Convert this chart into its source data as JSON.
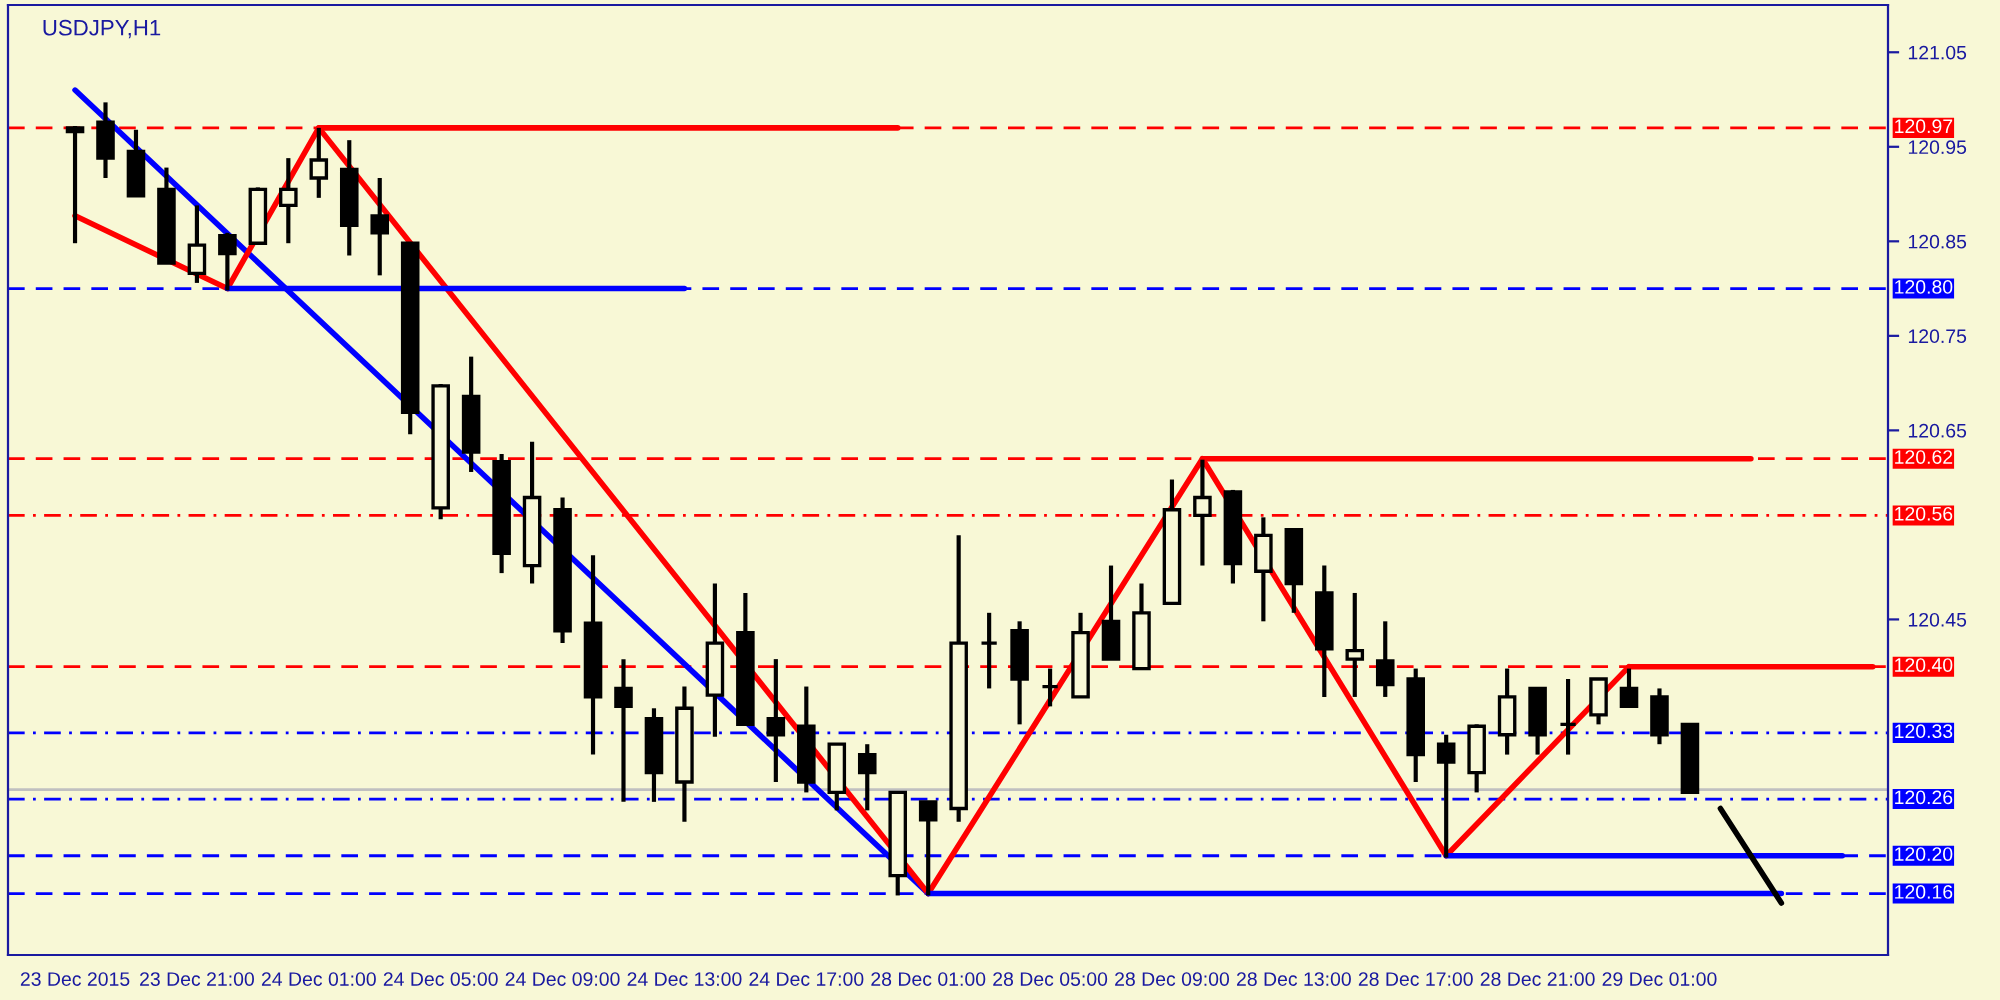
{
  "chart_data": {
    "type": "candlestick",
    "title": "USDJPY,H1",
    "categories": [
      "23 Dec 2015",
      null,
      null,
      null,
      "23 Dec 21:00",
      null,
      null,
      null,
      "24 Dec 01:00",
      null,
      null,
      null,
      "24 Dec 05:00",
      null,
      null,
      null,
      "24 Dec 09:00",
      null,
      null,
      null,
      "24 Dec 13:00",
      null,
      null,
      null,
      "24 Dec 17:00",
      null,
      null,
      null,
      "28 Dec 01:00",
      null,
      null,
      null,
      "28 Dec 05:00",
      null,
      null,
      null,
      "28 Dec 09:00",
      null,
      null,
      null,
      "28 Dec 13:00",
      null,
      null,
      null,
      "28 Dec 17:00",
      null,
      null,
      null,
      "28 Dec 21:00",
      null,
      null,
      null,
      "29 Dec 01:00",
      null,
      null,
      null,
      null,
      null,
      null,
      null
    ],
    "ohlc": [
      [
        120.97,
        120.972,
        120.848,
        120.966
      ],
      [
        120.976,
        120.997,
        120.917,
        120.938
      ],
      [
        120.945,
        120.968,
        120.898,
        120.898
      ],
      [
        120.905,
        120.928,
        120.827,
        120.827
      ],
      [
        120.816,
        120.888,
        120.806,
        120.846
      ],
      [
        120.856,
        120.859,
        120.798,
        120.837
      ],
      [
        120.848,
        120.907,
        120.848,
        120.905
      ],
      [
        120.888,
        120.938,
        120.848,
        120.905
      ],
      [
        120.917,
        120.97,
        120.896,
        120.936
      ],
      [
        120.926,
        120.957,
        120.835,
        120.867
      ],
      [
        120.877,
        120.917,
        120.814,
        120.859
      ],
      [
        120.848,
        120.848,
        120.646,
        120.669
      ],
      [
        120.568,
        120.699,
        120.556,
        120.697
      ],
      [
        120.686,
        120.728,
        120.606,
        120.627
      ],
      [
        120.617,
        120.625,
        120.499,
        120.52
      ],
      [
        120.507,
        120.638,
        120.488,
        120.579
      ],
      [
        120.566,
        120.579,
        120.425,
        120.438
      ],
      [
        120.446,
        120.518,
        120.307,
        120.368
      ],
      [
        120.377,
        120.408,
        120.257,
        120.358
      ],
      [
        120.345,
        120.356,
        120.257,
        120.288
      ],
      [
        120.278,
        120.379,
        120.236,
        120.356
      ],
      [
        120.37,
        120.488,
        120.326,
        120.425
      ],
      [
        120.436,
        120.478,
        120.339,
        120.339
      ],
      [
        120.345,
        120.408,
        120.278,
        120.328
      ],
      [
        120.337,
        120.379,
        120.267,
        120.278
      ],
      [
        120.267,
        120.318,
        120.248,
        120.318
      ],
      [
        120.307,
        120.318,
        120.248,
        120.288
      ],
      [
        120.179,
        120.267,
        120.158,
        120.267
      ],
      [
        120.257,
        120.257,
        120.158,
        120.238
      ],
      [
        120.25,
        120.539,
        120.236,
        120.425
      ],
      [
        120.425,
        120.457,
        120.377,
        120.425
      ],
      [
        120.438,
        120.448,
        120.339,
        120.387
      ],
      [
        120.379,
        120.398,
        120.358,
        120.379
      ],
      [
        120.368,
        120.457,
        120.368,
        120.436
      ],
      [
        120.448,
        120.507,
        120.408,
        120.408
      ],
      [
        120.398,
        120.488,
        120.398,
        120.457
      ],
      [
        120.467,
        120.598,
        120.467,
        120.566
      ],
      [
        120.56,
        120.619,
        120.507,
        120.579
      ],
      [
        120.585,
        120.587,
        120.488,
        120.509
      ],
      [
        120.501,
        120.558,
        120.448,
        120.539
      ],
      [
        120.545,
        120.545,
        120.457,
        120.488
      ],
      [
        120.478,
        120.507,
        120.368,
        120.419
      ],
      [
        120.408,
        120.478,
        120.368,
        120.417
      ],
      [
        120.406,
        120.448,
        120.368,
        120.381
      ],
      [
        120.387,
        120.398,
        120.278,
        120.307
      ],
      [
        120.318,
        120.328,
        120.198,
        120.299
      ],
      [
        120.288,
        120.339,
        120.267,
        120.337
      ],
      [
        120.328,
        120.398,
        120.307,
        120.368
      ],
      [
        120.377,
        120.377,
        120.307,
        120.328
      ],
      [
        120.339,
        120.387,
        120.307,
        120.339
      ],
      [
        120.349,
        120.387,
        120.339,
        120.387
      ],
      [
        120.377,
        120.398,
        120.358,
        120.358
      ],
      [
        120.368,
        120.377,
        120.318,
        120.328
      ],
      [
        120.339,
        120.339,
        120.267,
        120.267
      ],
      null,
      null,
      null,
      null,
      null,
      null
    ],
    "color": "#000000",
    "series": [
      {
        "type": "line",
        "color": "#0000ff",
        "values": [
          121.01,
          null,
          null,
          null,
          null,
          null,
          null,
          null,
          null,
          null,
          null,
          null,
          null,
          null,
          null,
          null,
          null,
          null,
          null,
          null,
          null,
          null,
          null,
          null,
          null,
          null,
          null,
          null,
          120.16,
          null,
          null,
          null,
          null,
          null,
          null,
          null,
          null,
          null,
          null,
          null,
          null,
          null,
          null,
          null,
          null,
          null,
          null,
          null,
          null,
          null,
          null,
          null,
          null,
          null,
          null,
          null,
          null,
          null,
          null,
          null
        ]
      },
      {
        "type": "line",
        "color": "#ff0000",
        "values": [
          120.877,
          null,
          null,
          null,
          null,
          120.8,
          null,
          null,
          120.97,
          null,
          null,
          null,
          null,
          null,
          null,
          null,
          null,
          null,
          null,
          null,
          null,
          null,
          null,
          null,
          null,
          null,
          null,
          null,
          120.16,
          null,
          null,
          null,
          null,
          null,
          null,
          null,
          null,
          120.62,
          null,
          null,
          null,
          null,
          null,
          null,
          null,
          120.2,
          null,
          null,
          null,
          null,
          null,
          120.4,
          null,
          null,
          null,
          null,
          null,
          null,
          null,
          null
        ]
      },
      {
        "type": "line",
        "color": "#ff0000",
        "values": [
          null,
          null,
          null,
          null,
          null,
          null,
          null,
          null,
          120.97,
          null,
          null,
          null,
          null,
          null,
          null,
          null,
          null,
          null,
          null,
          null,
          null,
          null,
          null,
          null,
          null,
          null,
          null,
          120.97,
          null,
          null,
          null,
          null,
          null,
          null,
          null,
          null,
          null,
          null,
          null,
          null,
          null,
          null,
          null,
          null,
          null,
          null,
          null,
          null,
          null,
          null,
          null,
          null,
          null,
          null,
          null,
          null,
          null,
          null,
          null,
          null
        ]
      },
      {
        "type": "line",
        "color": "#0000ff",
        "values": [
          null,
          null,
          null,
          null,
          null,
          120.8,
          null,
          null,
          null,
          null,
          null,
          null,
          null,
          null,
          null,
          null,
          null,
          null,
          null,
          null,
          120.8,
          null,
          null,
          null,
          null,
          null,
          null,
          null,
          null,
          null,
          null,
          null,
          null,
          null,
          null,
          null,
          null,
          null,
          null,
          null,
          null,
          null,
          null,
          null,
          null,
          null,
          null,
          null,
          null,
          null,
          null,
          null,
          null,
          null,
          null,
          null,
          null,
          null,
          null,
          null
        ]
      },
      {
        "type": "line",
        "color": "#ff0000",
        "values": [
          null,
          null,
          null,
          null,
          null,
          null,
          null,
          null,
          null,
          null,
          null,
          null,
          null,
          null,
          null,
          null,
          null,
          null,
          null,
          null,
          null,
          null,
          null,
          null,
          null,
          null,
          null,
          null,
          null,
          null,
          null,
          null,
          null,
          null,
          null,
          null,
          null,
          120.62,
          null,
          null,
          null,
          null,
          null,
          null,
          null,
          null,
          null,
          null,
          null,
          null,
          null,
          null,
          null,
          null,
          null,
          120.62,
          null,
          null,
          null,
          null
        ]
      },
      {
        "type": "line",
        "color": "#ff0000",
        "values": [
          null,
          null,
          null,
          null,
          null,
          null,
          null,
          null,
          null,
          null,
          null,
          null,
          null,
          null,
          null,
          null,
          null,
          null,
          null,
          null,
          null,
          null,
          null,
          null,
          null,
          null,
          null,
          null,
          null,
          null,
          null,
          null,
          null,
          null,
          null,
          null,
          null,
          null,
          null,
          null,
          null,
          null,
          null,
          null,
          null,
          null,
          null,
          null,
          null,
          null,
          null,
          120.4,
          null,
          null,
          null,
          null,
          null,
          null,
          null,
          120.4
        ]
      },
      {
        "type": "line",
        "color": "#0000ff",
        "values": [
          null,
          null,
          null,
          null,
          null,
          null,
          null,
          null,
          null,
          null,
          null,
          null,
          null,
          null,
          null,
          null,
          null,
          null,
          null,
          null,
          null,
          null,
          null,
          null,
          null,
          null,
          null,
          null,
          null,
          null,
          null,
          null,
          null,
          null,
          null,
          null,
          null,
          null,
          null,
          null,
          null,
          null,
          null,
          null,
          null,
          120.2,
          null,
          null,
          null,
          null,
          null,
          null,
          null,
          null,
          null,
          null,
          null,
          null,
          120.2,
          null
        ]
      },
      {
        "type": "line",
        "color": "#0000ff",
        "values": [
          null,
          null,
          null,
          null,
          null,
          null,
          null,
          null,
          null,
          null,
          null,
          null,
          null,
          null,
          null,
          null,
          null,
          null,
          null,
          null,
          null,
          null,
          null,
          null,
          null,
          null,
          null,
          null,
          120.16,
          null,
          null,
          null,
          null,
          null,
          null,
          null,
          null,
          null,
          null,
          null,
          null,
          null,
          null,
          null,
          null,
          null,
          null,
          null,
          null,
          null,
          null,
          null,
          null,
          null,
          null,
          null,
          120.16,
          null,
          null,
          null
        ]
      },
      {
        "type": "line",
        "color": "#000000",
        "values": [
          null,
          null,
          null,
          null,
          null,
          null,
          null,
          null,
          null,
          null,
          null,
          null,
          null,
          null,
          null,
          null,
          null,
          null,
          null,
          null,
          null,
          null,
          null,
          null,
          null,
          null,
          null,
          null,
          null,
          null,
          null,
          null,
          null,
          null,
          null,
          null,
          null,
          null,
          null,
          null,
          null,
          null,
          null,
          null,
          null,
          null,
          null,
          null,
          null,
          null,
          null,
          null,
          null,
          null,
          120.25,
          null,
          120.15,
          null,
          null,
          null
        ]
      }
    ],
    "ref_lines": [
      {
        "axis": "y",
        "value": 120.97,
        "label": "120.97",
        "color": "#ff0000",
        "line_style": "dashed"
      },
      {
        "axis": "y",
        "value": 120.8,
        "label": "120.80",
        "color": "#0000ff",
        "line_style": "dashed"
      },
      {
        "axis": "y",
        "value": 120.62,
        "label": "120.62",
        "color": "#ff0000",
        "line_style": "dashed"
      },
      {
        "axis": "y",
        "value": 120.56,
        "label": "120.56",
        "color": "#ff0000",
        "line_style": "dotted"
      },
      {
        "axis": "y",
        "value": 120.4,
        "label": "120.40",
        "color": "#ff0000",
        "line_style": "dashed"
      },
      {
        "axis": "y",
        "value": 120.33,
        "label": "120.33",
        "color": "#0000ff",
        "line_style": "dotted"
      },
      {
        "axis": "y",
        "value": 120.27,
        "color": "#c0c0c0",
        "line_style": "solid"
      },
      {
        "axis": "y",
        "value": 120.26,
        "label": "120.26",
        "color": "#0000ff",
        "line_style": "dotted"
      },
      {
        "axis": "y",
        "value": 120.2,
        "label": "120.20",
        "color": "#0000ff",
        "line_style": "dashed"
      },
      {
        "axis": "y",
        "value": 120.16,
        "label": "120.16",
        "color": "#0000ff",
        "line_style": "dashed"
      }
    ],
    "ylim": [
      120.095,
      121.1
    ],
    "yticks": [
      121.05,
      120.95,
      120.85,
      120.75,
      120.65,
      120.45
    ],
    "grid": false,
    "legend": false
  }
}
